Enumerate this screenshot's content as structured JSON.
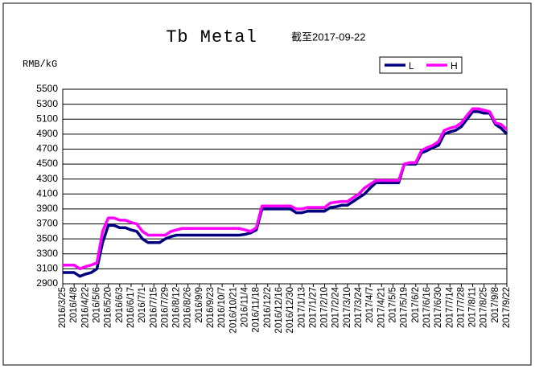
{
  "chart_data": {
    "type": "line",
    "title": "Tb Metal",
    "subtitle": "截至2017-09-22",
    "y_label": "RMB/kG",
    "categories": [
      "2016/3/25",
      null,
      "2016/4/8",
      null,
      "2016/4/22",
      null,
      "2016/5/6",
      null,
      "2016/5/20",
      null,
      "2016/6/3",
      null,
      "2016/6/17",
      null,
      "2016/7/1",
      null,
      "2016/7/15",
      null,
      "2016/7/29",
      null,
      "2016/8/12",
      null,
      "2016/8/26",
      null,
      "2016/9/9",
      null,
      "2016/9/23",
      null,
      "2016/10/7",
      null,
      "2016/10/21",
      null,
      "2016/11/4",
      null,
      "2016/11/18",
      null,
      "2016/12/2",
      null,
      "2016/12/16",
      null,
      "2016/12/30",
      null,
      "2017/1/13",
      null,
      "2017/1/27",
      null,
      "2017/2/10",
      null,
      "2017/2/24",
      null,
      "2017/3/10",
      null,
      "2017/3/24",
      null,
      "2017/4/7",
      null,
      "2017/4/21",
      null,
      "2017/5/5",
      null,
      "2017/5/19",
      null,
      "2017/6/2",
      null,
      "2017/6/16",
      null,
      "2017/6/30",
      null,
      "2017/7/14",
      null,
      "2017/7/28",
      null,
      "2017/8/11",
      null,
      "2017/8/25",
      null,
      "2017/9/8",
      null,
      "2017/9/22"
    ],
    "series": [
      {
        "name": "L",
        "color": "#000080",
        "values": [
          3050,
          3050,
          3050,
          3000,
          3030,
          3050,
          3100,
          3450,
          3680,
          3680,
          3650,
          3650,
          3620,
          3600,
          3500,
          3450,
          3450,
          3450,
          3500,
          3530,
          3550,
          3550,
          3550,
          3550,
          3550,
          3550,
          3550,
          3550,
          3550,
          3550,
          3550,
          3550,
          3560,
          3580,
          3620,
          3900,
          3900,
          3900,
          3900,
          3900,
          3900,
          3850,
          3850,
          3870,
          3870,
          3870,
          3870,
          3920,
          3930,
          3950,
          3950,
          4000,
          4050,
          4100,
          4180,
          4250,
          4250,
          4250,
          4250,
          4250,
          4500,
          4500,
          4500,
          4650,
          4680,
          4720,
          4750,
          4900,
          4930,
          4950,
          5000,
          5100,
          5200,
          5200,
          5180,
          5180,
          5030,
          4980,
          4900
        ]
      },
      {
        "name": "H",
        "color": "#ff00ff",
        "values": [
          3150,
          3150,
          3150,
          3100,
          3130,
          3150,
          3180,
          3600,
          3780,
          3780,
          3750,
          3750,
          3720,
          3700,
          3600,
          3550,
          3550,
          3550,
          3550,
          3600,
          3620,
          3640,
          3640,
          3640,
          3640,
          3640,
          3640,
          3640,
          3640,
          3640,
          3640,
          3640,
          3620,
          3600,
          3650,
          3940,
          3940,
          3940,
          3940,
          3940,
          3940,
          3900,
          3900,
          3920,
          3920,
          3920,
          3920,
          3980,
          3990,
          4000,
          4000,
          4050,
          4100,
          4180,
          4230,
          4280,
          4280,
          4280,
          4280,
          4280,
          4500,
          4520,
          4520,
          4680,
          4720,
          4750,
          4800,
          4950,
          4980,
          5000,
          5050,
          5150,
          5240,
          5240,
          5220,
          5200,
          5050,
          5030,
          4960
        ]
      }
    ],
    "ylim": [
      2900,
      5500
    ],
    "yticks": [
      2900,
      3100,
      3300,
      3500,
      3700,
      3900,
      4100,
      4300,
      4500,
      4700,
      4900,
      5100,
      5300,
      5500
    ],
    "grid": true,
    "legend": "top-right"
  }
}
